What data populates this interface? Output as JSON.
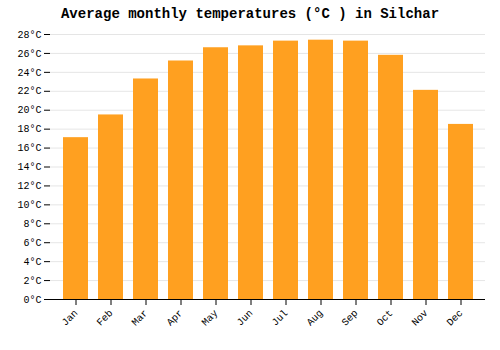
{
  "chart_data": {
    "type": "bar",
    "title": "Average monthly temperatures (°C ) in Silchar",
    "categories": [
      "Jan",
      "Feb",
      "Mar",
      "Apr",
      "May",
      "Jun",
      "Jul",
      "Aug",
      "Sep",
      "Oct",
      "Nov",
      "Dec"
    ],
    "values": [
      17.1,
      19.5,
      23.3,
      25.2,
      26.6,
      26.8,
      27.3,
      27.4,
      27.3,
      25.8,
      22.1,
      18.5
    ],
    "color": "#FFA020",
    "ylim": [
      0,
      28
    ],
    "yticks": [
      {
        "value": 0,
        "label": "0°C"
      },
      {
        "value": 2,
        "label": "2°C"
      },
      {
        "value": 4,
        "label": "4°C"
      },
      {
        "value": 6,
        "label": "6°C"
      },
      {
        "value": 8,
        "label": "8°C"
      },
      {
        "value": 10,
        "label": "10°C"
      },
      {
        "value": 12,
        "label": "12°C"
      },
      {
        "value": 14,
        "label": "14°C"
      },
      {
        "value": 16,
        "label": "16°C"
      },
      {
        "value": 18,
        "label": "18°C"
      },
      {
        "value": 20,
        "label": "20°C"
      },
      {
        "value": 22,
        "label": "22°C"
      },
      {
        "value": 24,
        "label": "24°C"
      },
      {
        "value": 26,
        "label": "26°C"
      },
      {
        "value": 28,
        "label": "28°C"
      }
    ],
    "grid": true
  }
}
